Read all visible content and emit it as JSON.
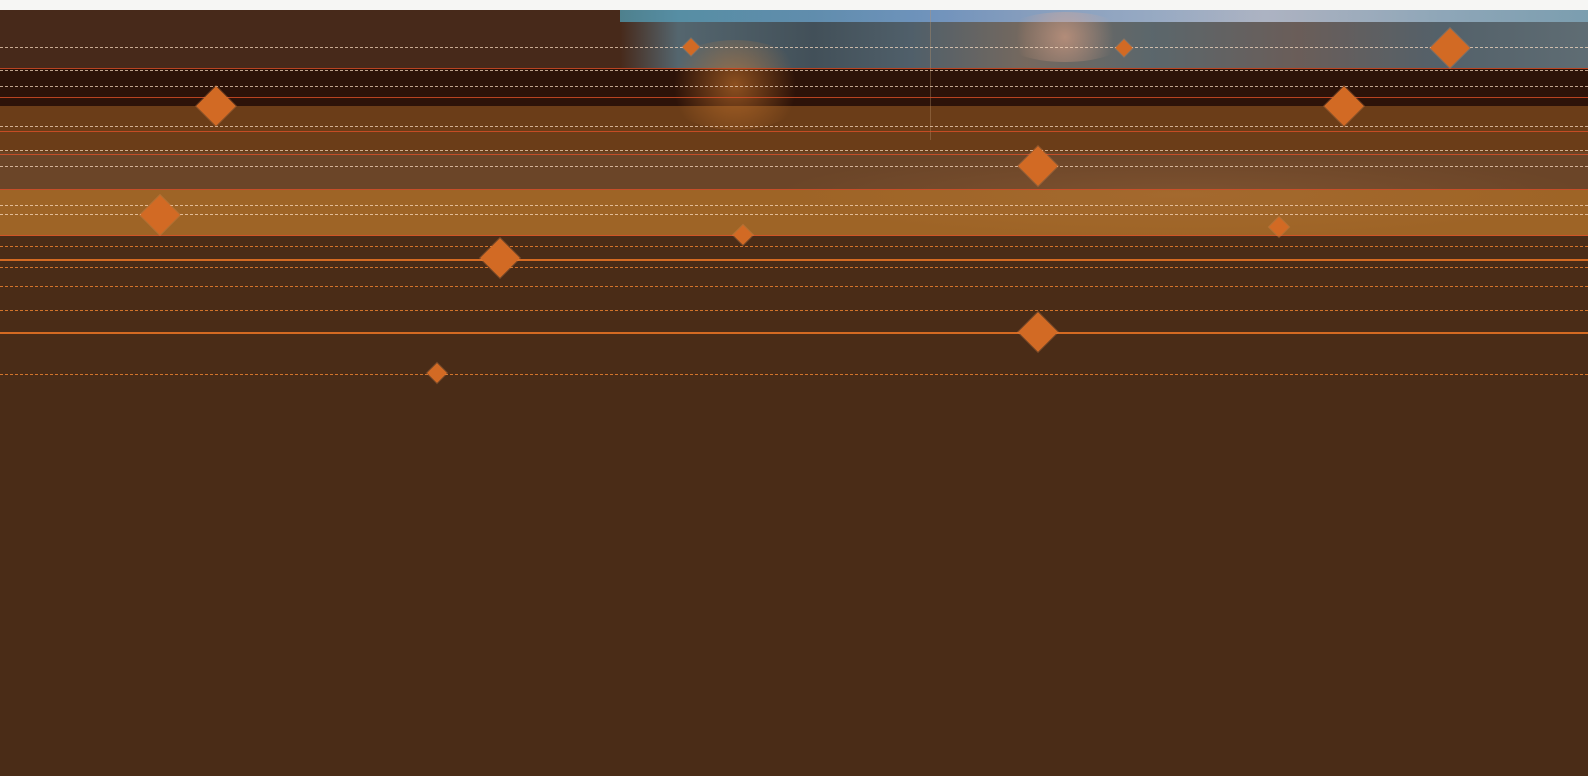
{
  "scene": {
    "background_color": "#4a2c17",
    "accent_color": "#d26a24",
    "top_edge_color": "#f6f6f4",
    "bands": [
      {
        "name": "photo-band",
        "color": "#47291a"
      },
      {
        "name": "dark-band",
        "color": "#2d1309"
      },
      {
        "name": "amber-band",
        "color": "#6b3d18"
      },
      {
        "name": "mid-band",
        "color": "#6b4528"
      },
      {
        "name": "light-orange-band",
        "color": "#9e6426"
      },
      {
        "name": "lower-band",
        "color": "#4a2c17"
      }
    ],
    "marker_shape": "diamond"
  }
}
